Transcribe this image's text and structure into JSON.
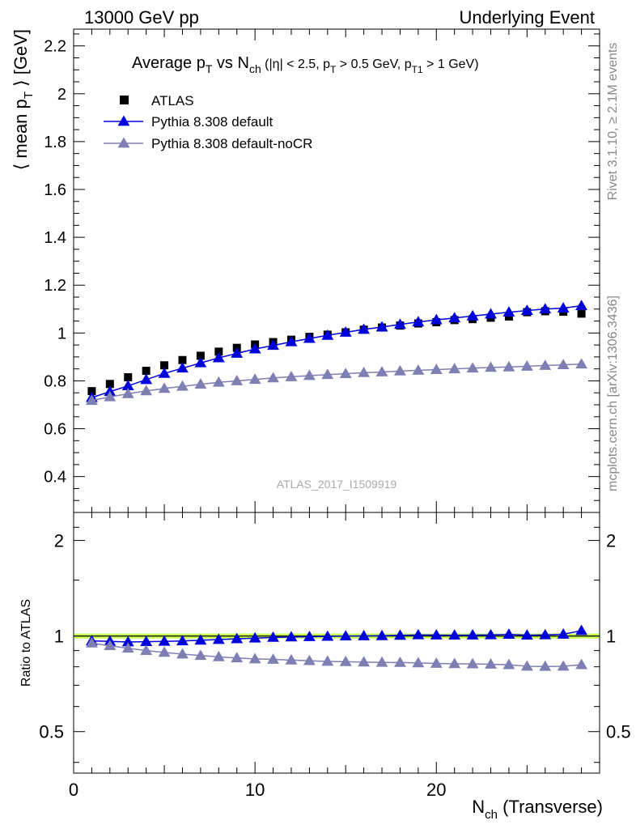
{
  "header": {
    "left": "13000 GeV pp",
    "right": "Underlying Event"
  },
  "side_labels": {
    "rivet": "Rivet 3.1.10, ≥ 2.1M events",
    "mcplots": "mcplots.cern.ch [arXiv:1306.3436]"
  },
  "watermark": "ATLAS_2017_I1509919",
  "colors": {
    "atlas": "#000000",
    "default": "#0000dd",
    "nocr": "#7f7fb4",
    "ratio_ref": "#aaff00"
  },
  "chart_data": [
    {
      "type": "scatter",
      "title_parts": {
        "main": "Average p",
        "main_sub": "T",
        "vs": " vs N",
        "vs_sub": "ch",
        "cut1": " (|η| < 2.5, p",
        "cut1_sub": "T",
        "cut2": " > 0.5 GeV, p",
        "cut2_sub": "T1",
        "cut3": " > 1 GeV)"
      },
      "ylabel": "⟨ mean p_T ⟩ [GeV]",
      "ylabel_parts": {
        "pre": "⟨ mean p",
        "sub": "T",
        "post": " ⟩ [GeV]"
      },
      "xlim": [
        0,
        29
      ],
      "ylim": [
        0.25,
        2.27
      ],
      "yticks": [
        0.4,
        0.6,
        0.8,
        1,
        1.2,
        1.4,
        1.6,
        1.8,
        2,
        2.2
      ],
      "ytick_labels": [
        "0.4",
        "0.6",
        "0.8",
        "1",
        "1.2",
        "1.4",
        "1.6",
        "1.8",
        "2",
        "2.2"
      ],
      "legend_position": "top-left",
      "x": [
        1,
        2,
        3,
        4,
        5,
        6,
        7,
        8,
        9,
        10,
        11,
        12,
        13,
        14,
        15,
        16,
        17,
        18,
        19,
        20,
        21,
        22,
        23,
        24,
        25,
        26,
        27,
        28
      ],
      "series": [
        {
          "name": "ATLAS",
          "marker": "square",
          "values": [
            0.757,
            0.787,
            0.815,
            0.842,
            0.865,
            0.887,
            0.905,
            0.922,
            0.938,
            0.952,
            0.962,
            0.972,
            0.984,
            0.993,
            1.003,
            1.014,
            1.023,
            1.031,
            1.04,
            1.045,
            1.054,
            1.058,
            1.064,
            1.069,
            1.087,
            1.091,
            1.089,
            1.081
          ]
        },
        {
          "name": "Pythia 8.308 default",
          "marker": "triangle",
          "values": [
            0.73,
            0.755,
            0.779,
            0.805,
            0.831,
            0.853,
            0.875,
            0.896,
            0.915,
            0.933,
            0.948,
            0.963,
            0.977,
            0.99,
            1.003,
            1.015,
            1.025,
            1.036,
            1.046,
            1.055,
            1.063,
            1.071,
            1.079,
            1.087,
            1.094,
            1.1,
            1.104,
            1.114
          ]
        },
        {
          "name": "Pythia 8.308 default-noCR",
          "marker": "triangle",
          "values": [
            0.718,
            0.733,
            0.746,
            0.758,
            0.768,
            0.777,
            0.786,
            0.794,
            0.8,
            0.806,
            0.812,
            0.817,
            0.822,
            0.826,
            0.83,
            0.834,
            0.837,
            0.841,
            0.844,
            0.847,
            0.85,
            0.853,
            0.856,
            0.858,
            0.861,
            0.864,
            0.867,
            0.87
          ]
        }
      ]
    },
    {
      "type": "line",
      "ylabel": "Ratio to ATLAS",
      "xlabel_parts": {
        "main": "N",
        "sub": "ch",
        "post": " (Transverse)"
      },
      "xlim": [
        0,
        29
      ],
      "ylim": [
        0.37,
        2.45
      ],
      "yscale": "log",
      "xticks": [
        0,
        10,
        20
      ],
      "xtick_labels": [
        "0",
        "10",
        "20"
      ],
      "yticks": [
        0.5,
        1,
        2
      ],
      "ytick_labels": [
        "0.5",
        "1",
        "2"
      ],
      "reference_value": 1.0,
      "x": [
        1,
        2,
        3,
        4,
        5,
        6,
        7,
        8,
        9,
        10,
        11,
        12,
        13,
        14,
        15,
        16,
        17,
        18,
        19,
        20,
        21,
        22,
        23,
        24,
        25,
        26,
        27,
        28
      ],
      "series": [
        {
          "name": "Pythia 8.308 default",
          "marker": "triangle",
          "values": [
            0.965,
            0.962,
            0.958,
            0.96,
            0.962,
            0.965,
            0.97,
            0.975,
            0.98,
            0.985,
            0.99,
            0.993,
            0.995,
            0.997,
            1.0,
            1.001,
            1.002,
            1.005,
            1.008,
            1.007,
            1.006,
            1.007,
            1.008,
            1.012,
            1.006,
            1.008,
            1.013,
            1.04
          ]
        },
        {
          "name": "Pythia 8.308 default-noCR",
          "marker": "triangle",
          "values": [
            0.95,
            0.932,
            0.915,
            0.9,
            0.888,
            0.877,
            0.868,
            0.86,
            0.853,
            0.847,
            0.844,
            0.84,
            0.836,
            0.832,
            0.83,
            0.828,
            0.826,
            0.825,
            0.823,
            0.82,
            0.818,
            0.817,
            0.815,
            0.812,
            0.803,
            0.802,
            0.803,
            0.812
          ]
        }
      ]
    }
  ]
}
